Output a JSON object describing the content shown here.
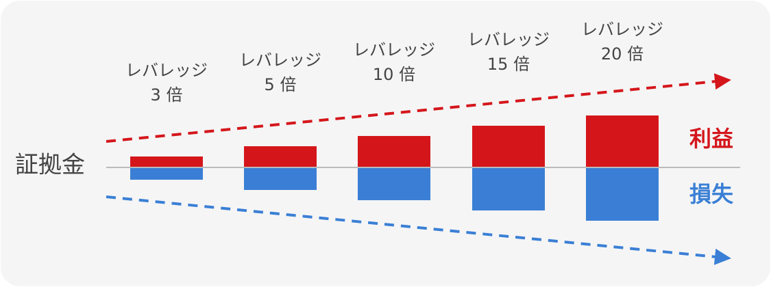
{
  "base_label": "証拠金",
  "legend": {
    "profit": "利益",
    "loss": "損失"
  },
  "levels": [
    {
      "line1": "レバレッジ",
      "line2": "3 倍"
    },
    {
      "line1": "レバレッジ",
      "line2": "5 倍"
    },
    {
      "line1": "レバレッジ",
      "line2": "10 倍"
    },
    {
      "line1": "レバレッジ",
      "line2": "15 倍"
    },
    {
      "line1": "レバレッジ",
      "line2": "20 倍"
    }
  ]
}
